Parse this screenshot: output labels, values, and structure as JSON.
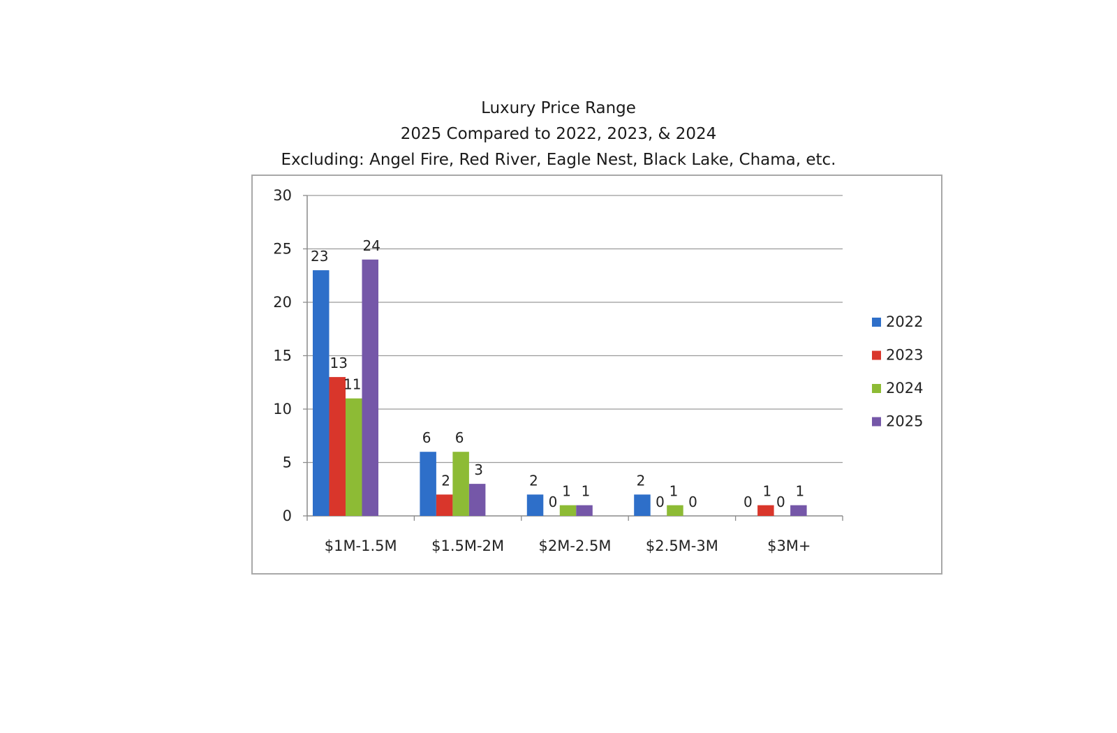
{
  "chart_data": {
    "type": "bar",
    "title": "Luxury Price Range",
    "subtitle": [
      "2025 Compared to 2022, 2023, & 2024",
      "Excluding: Angel Fire, Red River, Eagle Nest, Black Lake, Chama, etc."
    ],
    "xlabel": "",
    "ylabel": "",
    "categories": [
      "$1M-1.5M",
      "$1.5M-2M",
      "$2M-2.5M",
      "$2.5M-3M",
      "$3M+"
    ],
    "series": [
      {
        "name": "2022",
        "color": "#2E6FC9",
        "values": [
          23,
          6,
          2,
          2,
          0
        ]
      },
      {
        "name": "2023",
        "color": "#D9362B",
        "values": [
          13,
          2,
          0,
          0,
          1
        ]
      },
      {
        "name": "2024",
        "color": "#8DBB35",
        "values": [
          11,
          6,
          1,
          1,
          0
        ]
      },
      {
        "name": "2025",
        "color": "#7557A8",
        "values": [
          24,
          3,
          1,
          0,
          1
        ]
      }
    ],
    "ylim": [
      0,
      30
    ],
    "yticks": [
      0,
      5,
      10,
      15,
      20,
      25,
      30
    ],
    "grid": true,
    "legend": "right",
    "data_labels": true
  }
}
